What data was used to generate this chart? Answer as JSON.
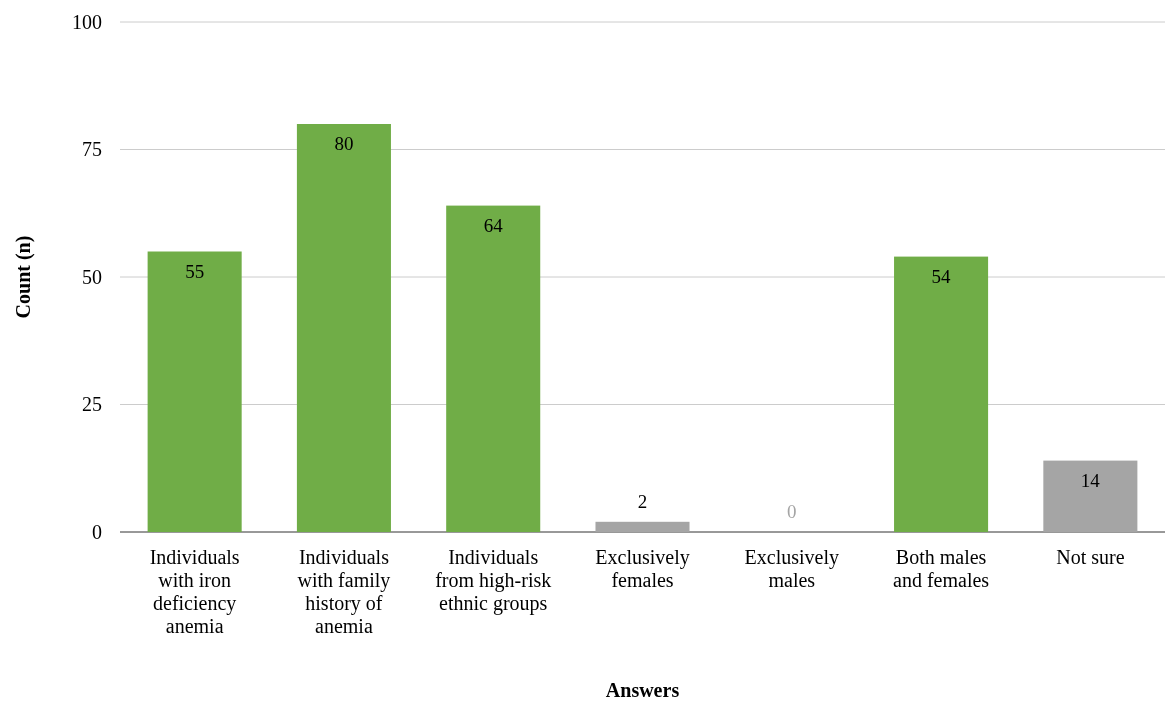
{
  "chart_data": {
    "type": "bar",
    "xlabel": "Answers",
    "ylabel": "Count (n)",
    "categories": [
      "Individuals with iron deficiency anemia",
      "Individuals with family history of anemia",
      "Individuals from high-risk ethnic groups",
      "Exclusively females",
      "Exclusively males",
      "Both males and females",
      "Not sure"
    ],
    "values": [
      55,
      80,
      64,
      2,
      0,
      54,
      14
    ],
    "colors": [
      "#70ad47",
      "#70ad47",
      "#70ad47",
      "#a5a5a5",
      "#a5a5a5",
      "#70ad47",
      "#a5a5a5"
    ],
    "ylim": [
      0,
      100
    ],
    "yticks": [
      0,
      25,
      50,
      75,
      100
    ],
    "grid": "y",
    "data_labels": true
  }
}
